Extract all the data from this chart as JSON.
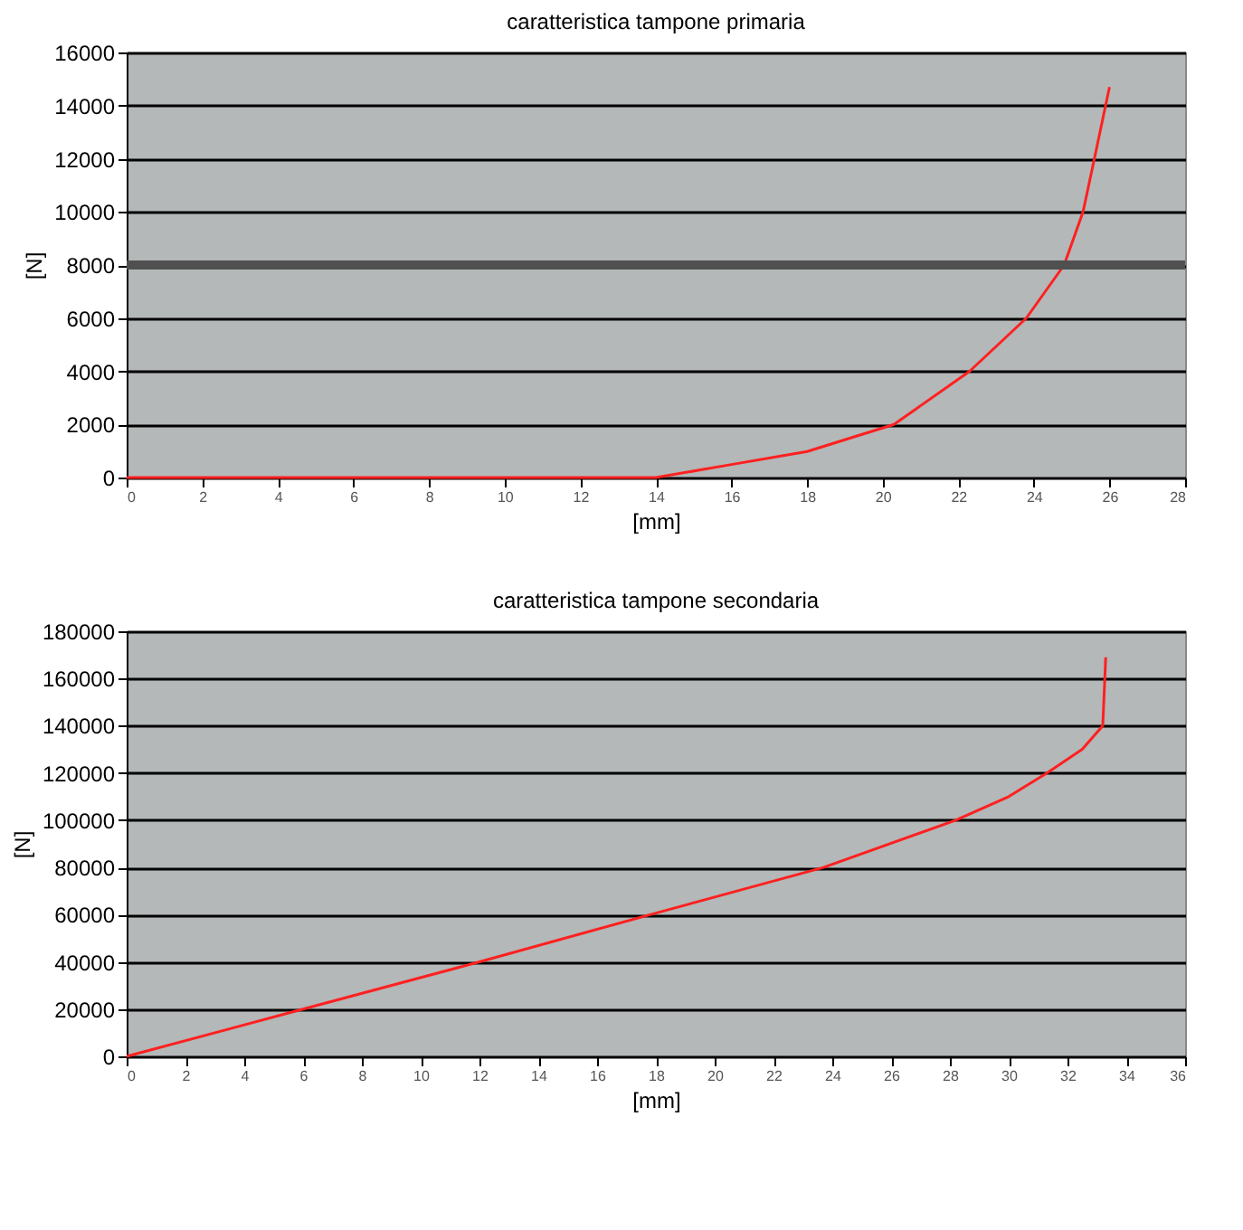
{
  "chart_data": [
    {
      "type": "line",
      "title": "caratteristica tampone primaria",
      "xlabel": "[mm]",
      "ylabel": "[N]",
      "x": [
        0,
        14,
        16,
        18,
        20.3,
        22.3,
        23.8,
        24.8,
        25.3,
        25.6,
        26
      ],
      "series": [
        {
          "color": "#ff2020",
          "values": [
            0,
            0,
            490,
            980,
            2000,
            4000,
            6000,
            8000,
            10000,
            12000,
            14700
          ]
        }
      ],
      "xlim": [
        0,
        28
      ],
      "xticks": [
        0,
        2,
        4,
        6,
        8,
        10,
        12,
        14,
        16,
        18,
        20,
        22,
        24,
        26,
        28
      ],
      "ylim": [
        0,
        16000
      ],
      "yticks": [
        0,
        2000,
        4000,
        6000,
        8000,
        10000,
        12000,
        14000,
        16000
      ],
      "ref_lines": [
        {
          "axis": "y",
          "value": 8000,
          "color": "#505050"
        }
      ],
      "grid": "y",
      "marker": "none",
      "line_style": "solid"
    },
    {
      "type": "line",
      "title": "caratteristica tampone secondaria",
      "xlabel": "[mm]",
      "ylabel": "[N]",
      "x": [
        0,
        6,
        12,
        17.8,
        23.7,
        28.2,
        30,
        31.3,
        32.5,
        33.2,
        33.3
      ],
      "series": [
        {
          "color": "#ff2020",
          "values": [
            0,
            20000,
            40000,
            60000,
            80000,
            100000,
            110000,
            120000,
            130000,
            140000,
            169000
          ]
        }
      ],
      "xlim": [
        0,
        36
      ],
      "xticks": [
        0,
        2,
        4,
        6,
        8,
        10,
        12,
        14,
        16,
        18,
        20,
        22,
        24,
        26,
        28,
        30,
        32,
        34,
        36
      ],
      "ylim": [
        0,
        180000
      ],
      "yticks": [
        0,
        20000,
        40000,
        60000,
        80000,
        100000,
        120000,
        140000,
        160000,
        180000
      ],
      "grid": "y",
      "marker": "none",
      "line_style": "solid"
    }
  ]
}
